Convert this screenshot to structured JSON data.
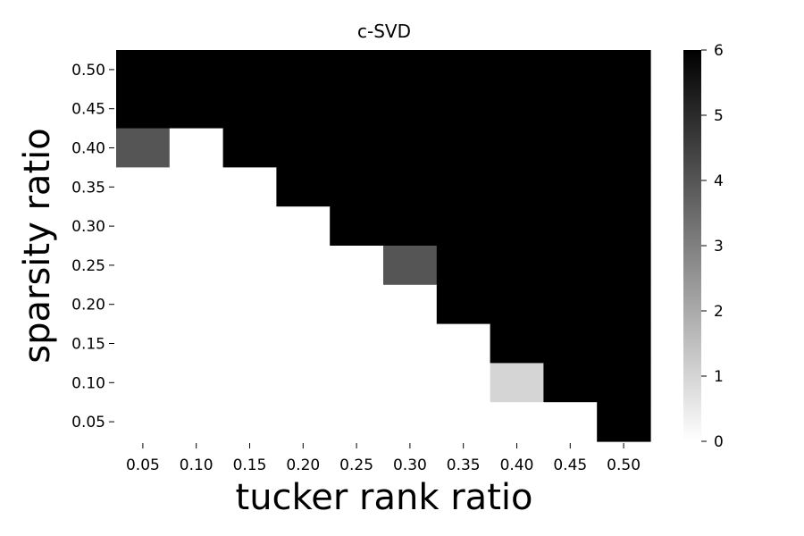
{
  "chart_data": {
    "type": "heatmap",
    "title": "c-SVD",
    "xlabel": "tucker rank ratio",
    "ylabel": "sparsity ratio",
    "x_tick_labels": [
      "0.05",
      "0.10",
      "0.15",
      "0.20",
      "0.25",
      "0.30",
      "0.35",
      "0.40",
      "0.45",
      "0.50"
    ],
    "y_tick_labels": [
      "0.50",
      "0.45",
      "0.40",
      "0.35",
      "0.30",
      "0.25",
      "0.20",
      "0.15",
      "0.10",
      "0.05"
    ],
    "values": [
      [
        6,
        6,
        6,
        6,
        6,
        6,
        6,
        6,
        6,
        6
      ],
      [
        6,
        6,
        6,
        6,
        6,
        6,
        6,
        6,
        6,
        6
      ],
      [
        4,
        0,
        6,
        6,
        6,
        6,
        6,
        6,
        6,
        6
      ],
      [
        0,
        0,
        0,
        6,
        6,
        6,
        6,
        6,
        6,
        6
      ],
      [
        0,
        0,
        0,
        0,
        6,
        6,
        6,
        6,
        6,
        6
      ],
      [
        0,
        0,
        0,
        0,
        0,
        4,
        6,
        6,
        6,
        6
      ],
      [
        0,
        0,
        0,
        0,
        0,
        0,
        6,
        6,
        6,
        6
      ],
      [
        0,
        0,
        0,
        0,
        0,
        0,
        0,
        6,
        6,
        6
      ],
      [
        0,
        0,
        0,
        0,
        0,
        0,
        0,
        1,
        6,
        6
      ],
      [
        0,
        0,
        0,
        0,
        0,
        0,
        0,
        0,
        0,
        6
      ]
    ],
    "colorbar": {
      "min": 0,
      "max": 6,
      "ticks": [
        "0",
        "1",
        "2",
        "3",
        "4",
        "5",
        "6"
      ],
      "colormap": "Greys",
      "low_color": "#ffffff",
      "high_color": "#000000"
    },
    "grid": false
  }
}
